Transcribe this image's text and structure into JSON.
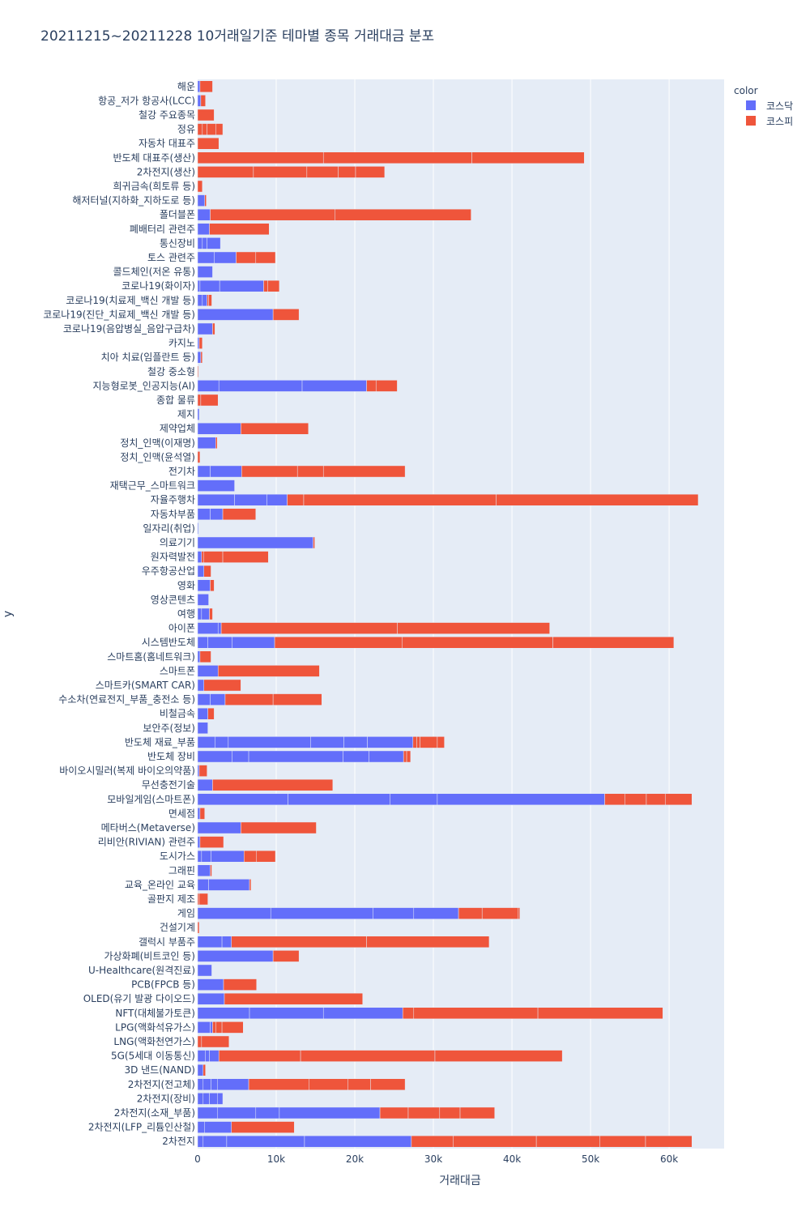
{
  "chart_data": {
    "type": "bar",
    "orientation": "horizontal",
    "barmode": "stack",
    "title": "20211215~20211228 10거래일기준 테마별 종목 거래대금 분포",
    "xlabel": "거래대금",
    "ylabel": "y",
    "xlim": [
      0,
      67000
    ],
    "x_ticks": [
      0,
      10000,
      20000,
      30000,
      40000,
      50000,
      60000
    ],
    "x_tick_labels": [
      "0",
      "10k",
      "20k",
      "30k",
      "40k",
      "50k",
      "60k"
    ],
    "legend": {
      "title": "color",
      "position": "top-right"
    },
    "colors": {
      "코스닥": "#636efa",
      "코스피": "#ef553b",
      "plot_bg": "#e5ecf6",
      "text": "#2a3f5f"
    },
    "categories": [
      "해운",
      "항공_저가 항공사(LCC)",
      "철강 주요종목",
      "정유",
      "자동차 대표주",
      "반도체 대표주(생산)",
      "2차전지(생산)",
      "희귀금속(희토류 등)",
      "해저터널(지하화_지하도로 등)",
      "폴더블폰",
      "폐배터리 관련주",
      "통신장비",
      "토스 관련주",
      "콜드체인(저온 유통)",
      "코로나19(화이자)",
      "코로나19(치료제_백신 개발 등)",
      "코로나19(진단_치료제_백신 개발 등)",
      "코로나19(음압병실_음압구급차)",
      "카지노",
      "치아 치료(임플란트 등)",
      "철강 중소형",
      "지능형로봇_인공지능(AI)",
      "종합 물류",
      "제지",
      "제약업체",
      "정치_인맥(이재명)",
      "정치_인맥(윤석열)",
      "전기차",
      "재택근무_스마트워크",
      "자율주행차",
      "자동차부품",
      "일자리(취업)",
      "의료기기",
      "원자력발전",
      "우주항공산업",
      "영화",
      "영상콘텐츠",
      "여행",
      "아이폰",
      "시스템반도체",
      "스마트홈(홈네트워크)",
      "스마트폰",
      "스마트카(SMART CAR)",
      "수소차(연료전지_부품_충전소 등)",
      "비철금속",
      "보안주(정보)",
      "반도체 재료_부품",
      "반도체 장비",
      "바이오시밀러(복제 바이오의약품)",
      "무선충전기술",
      "모바일게임(스마트폰)",
      "면세점",
      "메타버스(Metaverse)",
      "리비안(RIVIAN) 관련주",
      "도시가스",
      "그래핀",
      "교육_온라인 교육",
      "골판지 제조",
      "게임",
      "건설기계",
      "갤럭시 부품주",
      "가상화폐(비트코인 등)",
      "U-Healthcare(원격진료)",
      "PCB(FPCB 등)",
      "OLED(유기 발광 다이오드)",
      "NFT(대체불가토큰)",
      "LPG(액화석유가스)",
      "LNG(액화천연가스)",
      "5G(5세대 이동통신)",
      "3D 낸드(NAND)",
      "2차전지(전고체)",
      "2차전지(장비)",
      "2차전지(소재_부품)",
      "2차전지(LFP_리튬인산철)",
      "2차전지"
    ],
    "series": [
      {
        "name": "코스닥",
        "values": [
          [
            0.3
          ],
          [
            0.4
          ],
          [
            0
          ],
          [
            0
          ],
          [
            0
          ],
          [
            0
          ],
          [
            0
          ],
          [
            0
          ],
          [
            0.9
          ],
          [
            1.6
          ],
          [
            1.5
          ],
          [
            0.6,
            0.6,
            1.7
          ],
          [
            2.1,
            2.8
          ],
          [
            1.9
          ],
          [
            0.3,
            2.5,
            5.6
          ],
          [
            0.6,
            0.6
          ],
          [
            9.6
          ],
          [
            1.9
          ],
          [
            0.2
          ],
          [
            0.4
          ],
          [
            0
          ],
          [
            2.7,
            10.6,
            8.2
          ],
          [
            0
          ],
          [
            0.2
          ],
          [
            5.5
          ],
          [
            2.3
          ],
          [
            0
          ],
          [
            1.6,
            4.0
          ],
          [
            4.7
          ],
          [
            4.7,
            4.1,
            2.6
          ],
          [
            1.6,
            1.6
          ],
          [
            0.1
          ],
          [
            14.7
          ],
          [
            0.5
          ],
          [
            0.8
          ],
          [
            1.6
          ],
          [
            1.4
          ],
          [
            0.5,
            1.0
          ],
          [
            2.6,
            0.4
          ],
          [
            1.3,
            3.1,
            5.4
          ],
          [
            0.3
          ],
          [
            2.6
          ],
          [
            0.8
          ],
          [
            1.6,
            1.9
          ],
          [
            1.3
          ],
          [
            1.3
          ],
          [
            2.2,
            1.7,
            10.5,
            4.2,
            3.0,
            5.8
          ],
          [
            4.4,
            2.1,
            12.0,
            3.3,
            4.4
          ],
          [
            0.2
          ],
          [
            1.9
          ],
          [
            11.5,
            13.0,
            6.0,
            21.3
          ],
          [
            0.3
          ],
          [
            5.5
          ],
          [
            0.3
          ],
          [
            0.5,
            1.2,
            4.2
          ],
          [
            1.6
          ],
          [
            1.4,
            5.2
          ],
          [
            0
          ],
          [
            9.3,
            13.0,
            5.2,
            5.7
          ],
          [
            0
          ],
          [
            3.1,
            1.2
          ],
          [
            9.6
          ],
          [
            1.8
          ],
          [
            3.3
          ],
          [
            3.4
          ],
          [
            6.6,
            9.4,
            10.1
          ],
          [
            1.6,
            0.3
          ],
          [
            0
          ],
          [
            1.0,
            0.5,
            1.2
          ],
          [
            0.7
          ],
          [
            0.7,
            1.0,
            0.8,
            4.0
          ],
          [
            0.7,
            0.8,
            1.0,
            0.7
          ],
          [
            2.5,
            4.9,
            3.0,
            12.8
          ],
          [
            0.9,
            3.4
          ],
          [
            0.7,
            3.0,
            9.9,
            13.6
          ]
        ]
      },
      {
        "name": "코스피",
        "values": [
          [
            1.6
          ],
          [
            0.6
          ],
          [
            2.1
          ],
          [
            0.6,
            0.6,
            1.1,
            0.9
          ],
          [
            2.7
          ],
          [
            16.0,
            18.9,
            14.3
          ],
          [
            7.1,
            6.8,
            4.0,
            2.2,
            3.7
          ],
          [
            0.6
          ],
          [
            0.2
          ],
          [
            15.9,
            17.3
          ],
          [
            7.6
          ],
          [
            0
          ],
          [
            2.5,
            2.5
          ],
          [
            0
          ],
          [
            0.5,
            1.5
          ],
          [
            0.2,
            0.4
          ],
          [
            3.3
          ],
          [
            0.3
          ],
          [
            0.4
          ],
          [
            0.2
          ],
          [
            0.1
          ],
          [
            1.2,
            2.7
          ],
          [
            0.4,
            2.2
          ],
          [
            0
          ],
          [
            8.6
          ],
          [
            0.2
          ],
          [
            0.3
          ],
          [
            7.1,
            3.3,
            10.4
          ],
          [
            0
          ],
          [
            2.1,
            24.5,
            25.7
          ],
          [
            4.2
          ],
          [
            0
          ],
          [
            0.2
          ],
          [
            0.3,
            2.4,
            5.8
          ],
          [
            0.9
          ],
          [
            0.5
          ],
          [
            0
          ],
          [
            0.4
          ],
          [
            22.4,
            19.4
          ],
          [
            16.2,
            19.2,
            15.4
          ],
          [
            1.4
          ],
          [
            12.9
          ],
          [
            4.7
          ],
          [
            6.1,
            6.2
          ],
          [
            0.8
          ],
          [
            0
          ],
          [
            0.5,
            0.4,
            2.2,
            0.9
          ],
          [
            0.4,
            0.5
          ],
          [
            1.0
          ],
          [
            15.3
          ],
          [
            2.6,
            2.7,
            2.4,
            3.4
          ],
          [
            0.6
          ],
          [
            9.6
          ],
          [
            3.0
          ],
          [
            1.6,
            2.4
          ],
          [
            0.2
          ],
          [
            0.2
          ],
          [
            0.2,
            1.1
          ],
          [
            3.0,
            4.6,
            0.2
          ],
          [
            0.2
          ],
          [
            17.2,
            15.6
          ],
          [
            3.3
          ],
          [
            0
          ],
          [
            4.2
          ],
          [
            17.6
          ],
          [
            1.4,
            15.8,
            15.9
          ],
          [
            0.4,
            0.8,
            2.7
          ],
          [
            0.5,
            3.5
          ],
          [
            10.4,
            17.1,
            16.2
          ],
          [
            0.3
          ],
          [
            7.7,
            4.9,
            2.9,
            4.4
          ],
          [
            0
          ],
          [
            3.6,
            4.0,
            2.6,
            4.4
          ],
          [
            8.0
          ],
          [
            5.3,
            10.6,
            8.1,
            5.8,
            5.9
          ]
        ]
      }
    ]
  }
}
